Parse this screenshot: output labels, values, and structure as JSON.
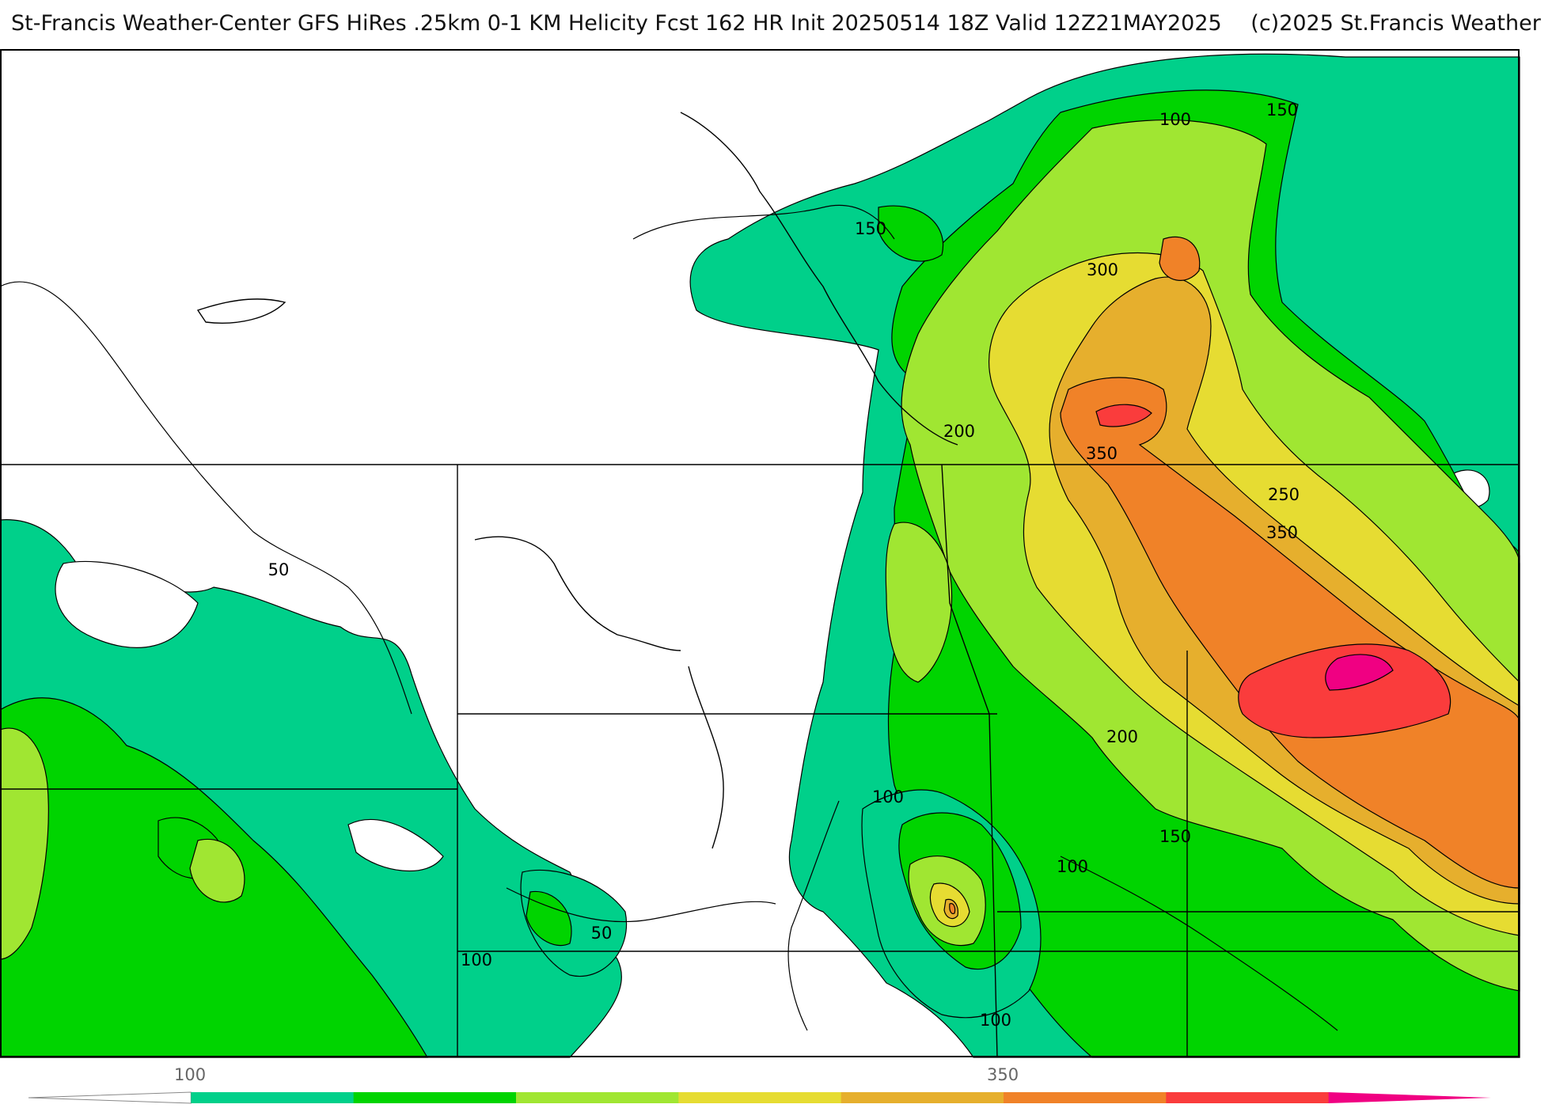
{
  "header": {
    "title_main": "St-Francis Weather-Center GFS HiRes .25km 0-1 KM Helicity Fcst 162 HR Init 20250514 18Z  Valid 12Z21MAY2025",
    "copyright": "(c)2025 St.Francis Weather"
  },
  "contour_labels": {
    "c100_top": "100",
    "c150_top": "150",
    "c150_left": "150",
    "c300": "300",
    "c200_north": "200",
    "c350_north": "350",
    "c250": "250",
    "c350_east": "350",
    "c50_west": "50",
    "c200_central": "200",
    "c100_central": "100",
    "c150_east": "150",
    "c100_east": "100",
    "c50_south": "50",
    "c100_southwest": "100",
    "c100_south": "100"
  },
  "legend": {
    "tick_low": "100",
    "tick_high": "350",
    "colors": [
      "#ffffff",
      "#00d08a",
      "#00d400",
      "#a0e632",
      "#e6dc32",
      "#e6af2d",
      "#f08228",
      "#fa3c3c",
      "#f00082"
    ]
  },
  "colors": {
    "c50": "#00d08a",
    "c100": "#00d400",
    "c150": "#a0e632",
    "c200": "#e6dc32",
    "c250": "#e6af2d",
    "c300": "#f08228",
    "c350": "#fa3c3c",
    "c400": "#f00082"
  }
}
